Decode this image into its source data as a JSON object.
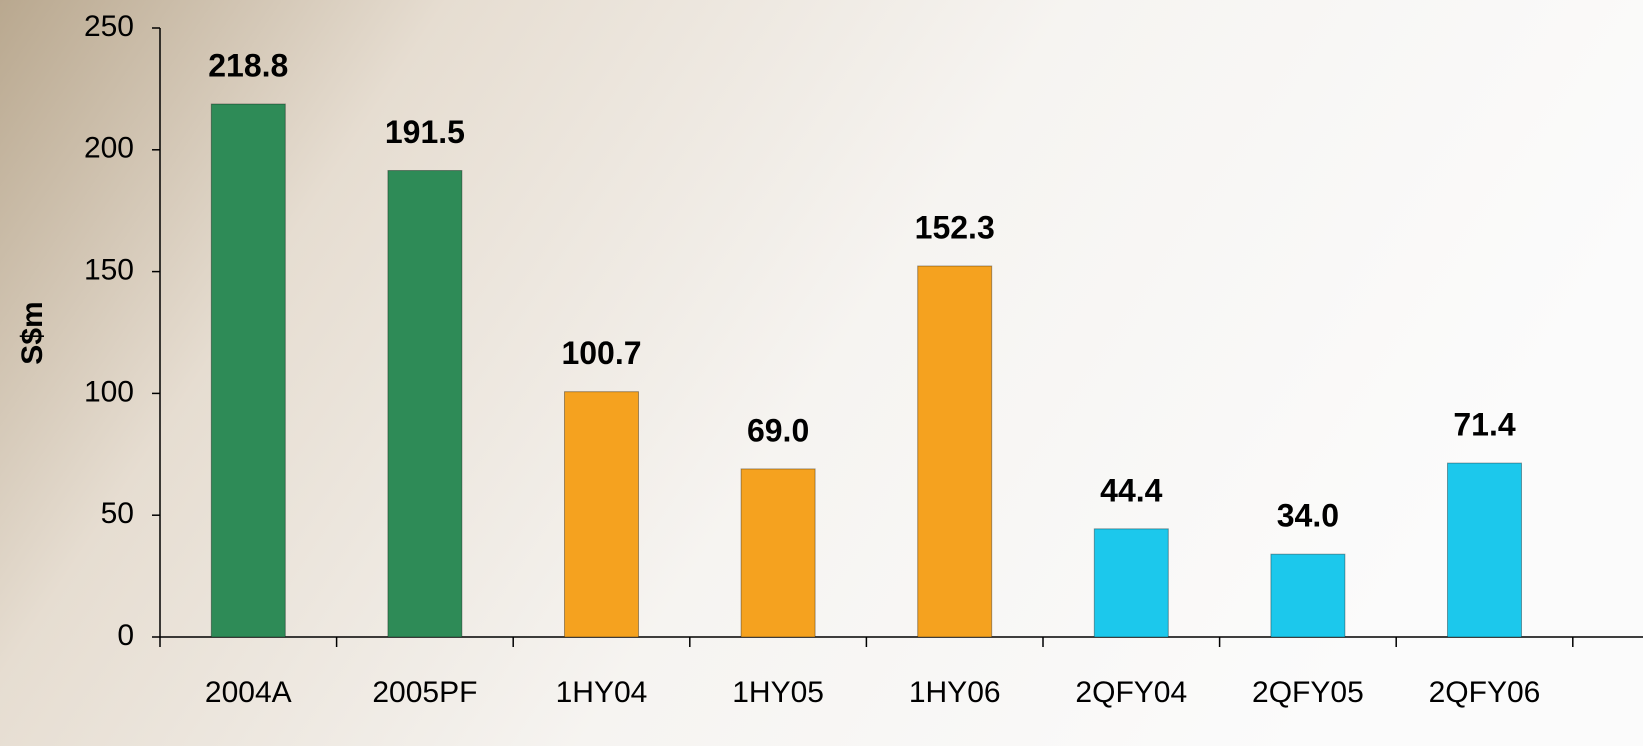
{
  "chart_data": {
    "type": "bar",
    "ylabel": "S$m",
    "categories": [
      "2004A",
      "2005PF",
      "1HY04",
      "1HY05",
      "1HY06",
      "2QFY04",
      "2QFY05",
      "2QFY06"
    ],
    "values": [
      218.8,
      191.5,
      100.7,
      69,
      152.3,
      44.4,
      34,
      71.4
    ],
    "value_labels": [
      "218.8",
      "191.5",
      "100.7",
      "69.0",
      "152.3",
      "44.4",
      "34.0",
      "71.4"
    ],
    "colors": [
      "#2e8b57",
      "#2e8b57",
      "#f5a21f",
      "#f5a21f",
      "#f5a21f",
      "#1cc8ec",
      "#1cc8ec",
      "#1cc8ec"
    ],
    "ylim": [
      0,
      250
    ],
    "yticks": [
      0,
      50,
      100,
      150,
      200,
      250
    ]
  }
}
